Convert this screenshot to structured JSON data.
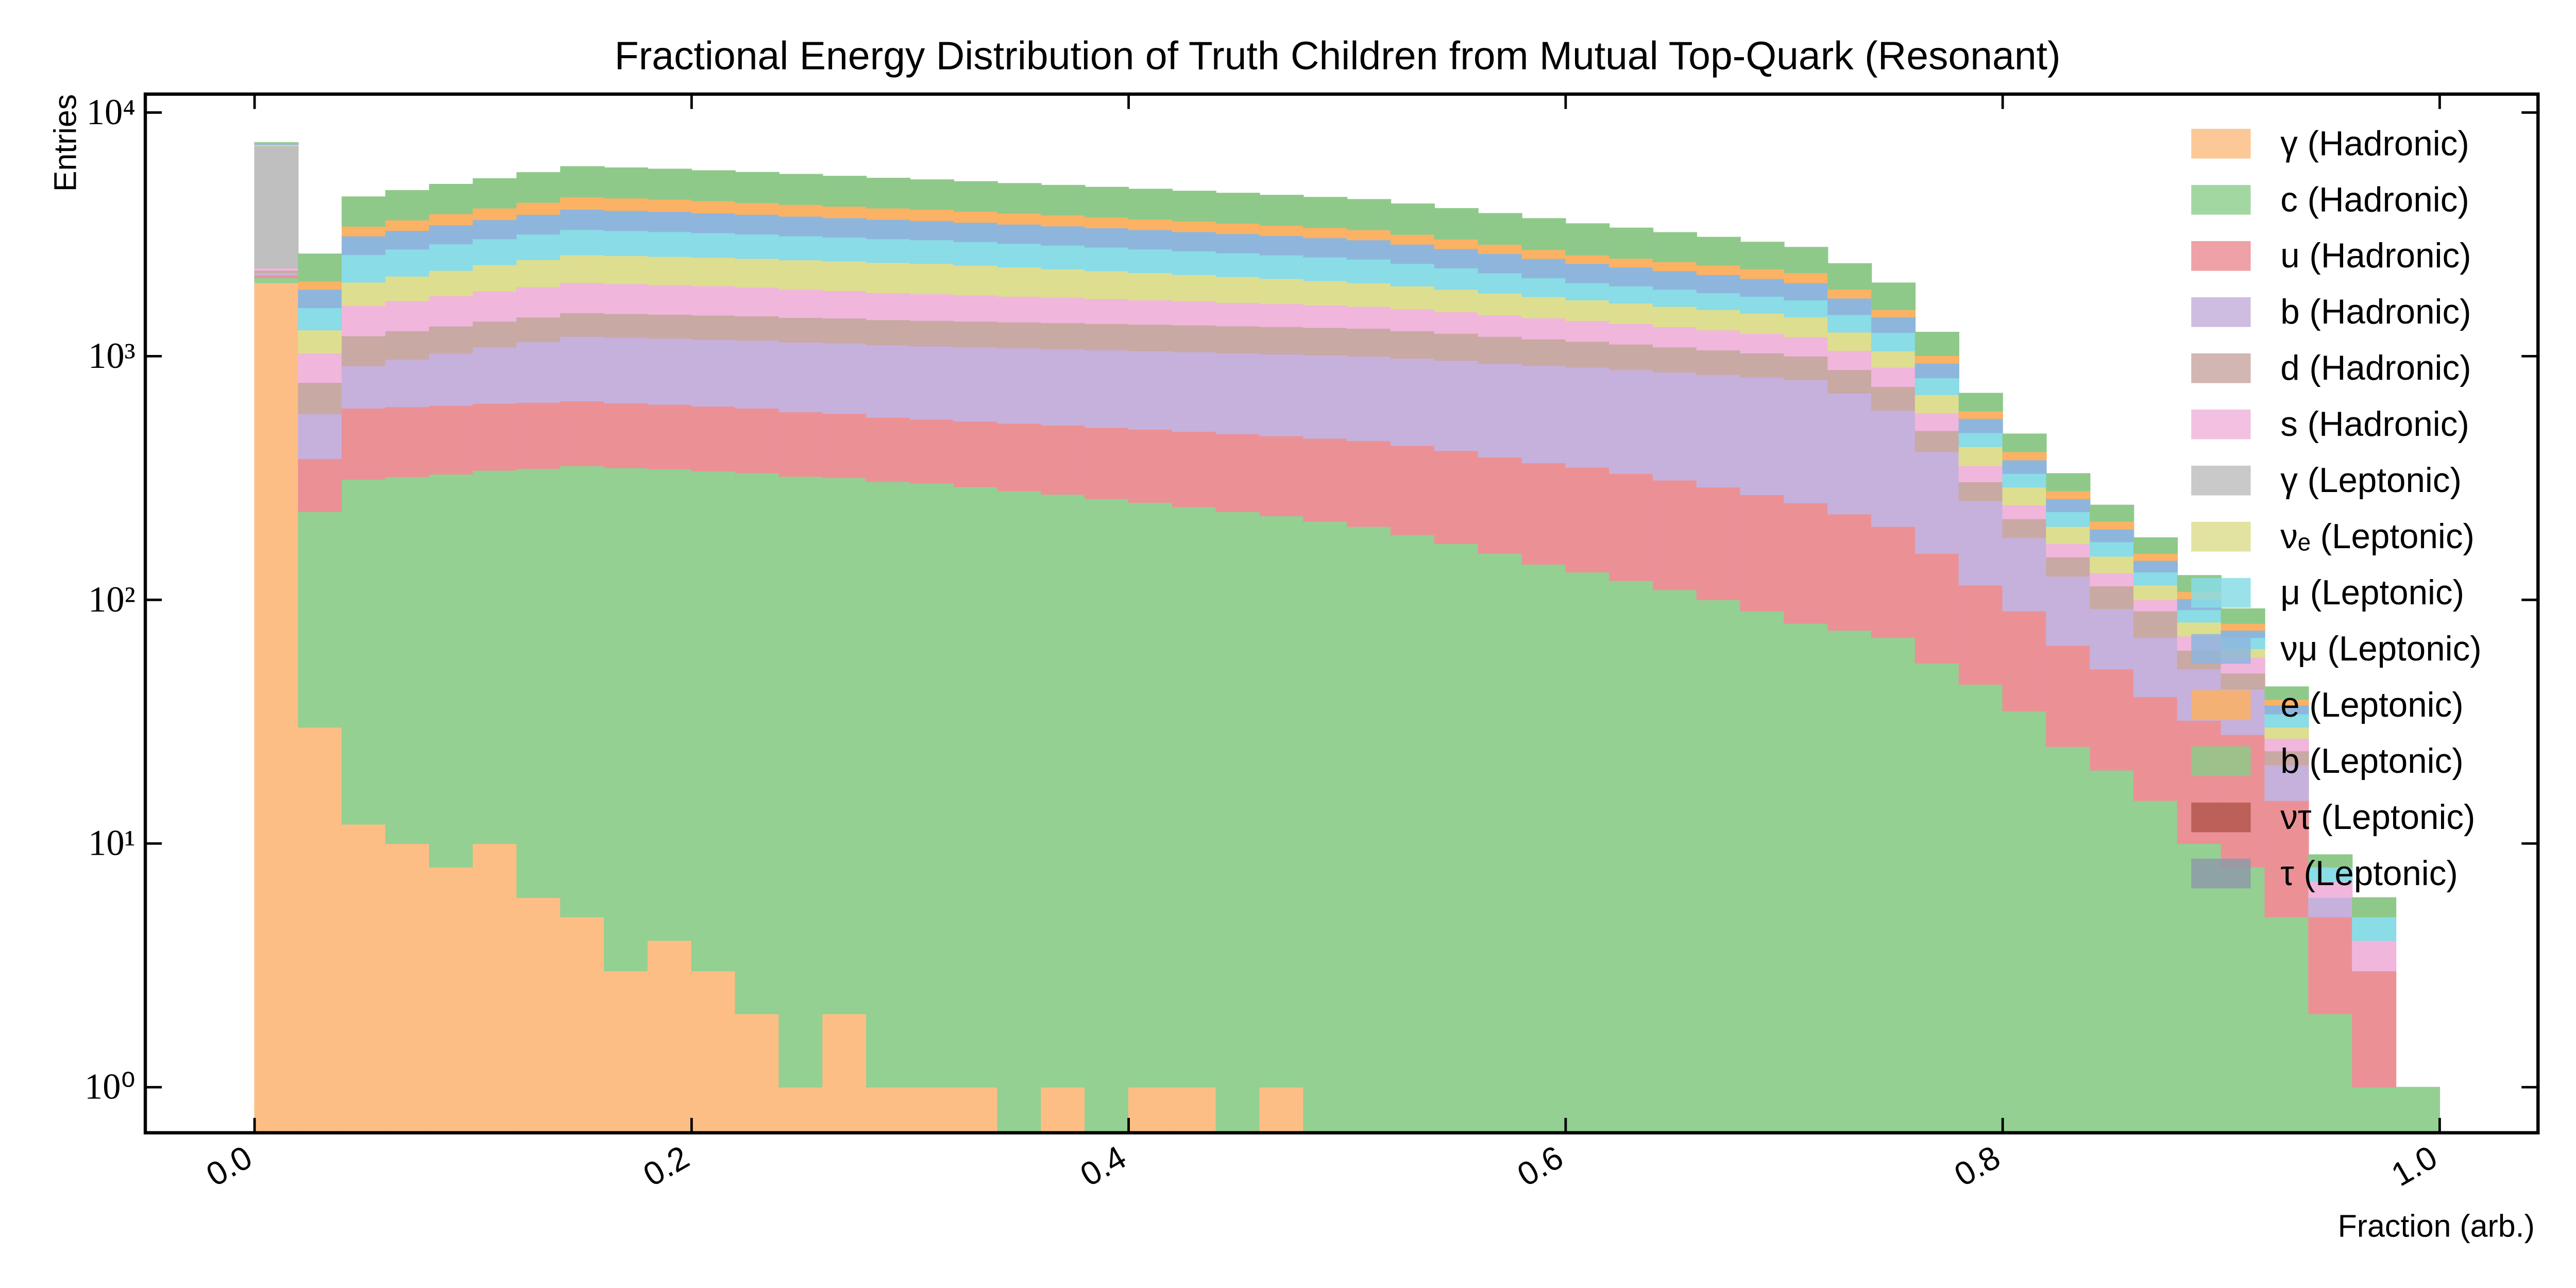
{
  "chart_data": {
    "type": "stacked_histogram",
    "title": "Fractional Energy Distribution of Truth Children from Mutual Top-Quark (Resonant)",
    "x_label": "Fraction (arb.)",
    "y_label": "Entries",
    "log_y": true,
    "grid": false,
    "legend": "upper right",
    "xlim": [
      -0.05,
      1.045
    ],
    "ylim": [
      0.65,
      11900
    ],
    "xticks": [
      {
        "value": 0,
        "label": "0.0"
      },
      0.2,
      0.4,
      0.6,
      0.8,
      {
        "value": 1,
        "label": "1.0"
      }
    ],
    "yticks": [
      {
        "value": 1,
        "label": "10⁰"
      },
      {
        "value": 10,
        "label": "10¹"
      },
      {
        "value": 100,
        "label": "10²"
      },
      {
        "value": 1000,
        "label": "10³"
      },
      {
        "value": 10000,
        "label": "10⁴"
      }
    ],
    "bins": [
      0,
      0.02,
      0.04,
      0.06,
      0.08,
      0.1,
      0.12,
      0.14,
      0.16,
      0.18,
      0.2,
      0.22,
      0.24,
      0.26,
      0.28,
      0.3,
      0.32,
      0.34,
      0.36,
      0.38,
      0.4,
      0.42,
      0.44,
      0.46,
      0.48,
      0.5,
      0.52,
      0.54,
      0.56,
      0.58,
      0.6,
      0.62,
      0.64,
      0.66,
      0.68,
      0.7,
      0.72,
      0.74,
      0.76,
      0.78,
      0.8,
      0.82,
      0.84,
      0.86,
      0.88,
      0.9,
      0.92,
      0.94,
      0.96,
      0.98,
      1
    ],
    "series": [
      {
        "name": "γ (Hadronic)",
        "color": "#fdbe85",
        "values": [
          2000,
          30,
          12,
          10,
          8,
          10,
          6,
          5,
          3,
          4,
          3,
          2,
          1,
          2,
          1,
          1,
          1,
          0,
          1,
          0,
          1,
          1,
          0,
          1,
          0,
          0,
          0,
          0,
          0,
          0,
          0,
          0,
          0,
          0,
          0,
          0,
          0,
          0,
          0,
          0,
          0,
          0,
          0,
          0,
          0,
          0,
          0,
          0,
          0,
          0
        ]
      },
      {
        "name": "c (Hadronic)",
        "color": "#93d092",
        "values": [
          100,
          200,
          300,
          310,
          320,
          330,
          340,
          350,
          345,
          340,
          335,
          330,
          320,
          315,
          305,
          300,
          290,
          280,
          270,
          260,
          250,
          240,
          230,
          220,
          210,
          200,
          185,
          170,
          155,
          140,
          130,
          120,
          110,
          100,
          90,
          80,
          75,
          70,
          55,
          45,
          35,
          25,
          20,
          15,
          10,
          8,
          5,
          2,
          1,
          1
        ]
      },
      {
        "name": "u (Hadronic)",
        "color": "#eb9196",
        "values": [
          50,
          150,
          300,
          300,
          300,
          300,
          300,
          300,
          295,
          290,
          285,
          280,
          270,
          265,
          255,
          250,
          250,
          250,
          250,
          250,
          250,
          250,
          250,
          250,
          250,
          250,
          245,
          240,
          230,
          225,
          220,
          210,
          200,
          190,
          180,
          170,
          150,
          130,
          100,
          70,
          55,
          40,
          32,
          25,
          22,
          20,
          10,
          3,
          2,
          0
        ]
      },
      {
        "name": "b (Hadronic)",
        "color": "#c6b1dc",
        "values": [
          50,
          200,
          300,
          350,
          400,
          450,
          500,
          550,
          550,
          550,
          550,
          550,
          550,
          550,
          550,
          550,
          550,
          550,
          550,
          550,
          550,
          550,
          550,
          550,
          550,
          550,
          550,
          550,
          550,
          550,
          550,
          550,
          550,
          550,
          550,
          550,
          480,
          400,
          250,
          140,
          90,
          60,
          40,
          30,
          20,
          15,
          6,
          1,
          0,
          0
        ]
      },
      {
        "name": "d (Hadronic)",
        "color": "#c9a9a3",
        "values": [
          50,
          200,
          300,
          300,
          300,
          300,
          300,
          300,
          300,
          300,
          300,
          300,
          300,
          300,
          300,
          300,
          300,
          300,
          300,
          300,
          300,
          300,
          300,
          300,
          300,
          300,
          290,
          280,
          270,
          260,
          250,
          240,
          230,
          220,
          210,
          200,
          175,
          150,
          90,
          50,
          35,
          25,
          22,
          20,
          10,
          7,
          3,
          0,
          0,
          0
        ]
      },
      {
        "name": "s (Hadronic)",
        "color": "#f0b6dc",
        "values": [
          50,
          250,
          400,
          420,
          440,
          460,
          480,
          500,
          490,
          480,
          470,
          455,
          440,
          425,
          410,
          400,
          390,
          380,
          370,
          360,
          350,
          340,
          330,
          320,
          310,
          300,
          290,
          280,
          270,
          260,
          250,
          240,
          230,
          220,
          210,
          200,
          175,
          150,
          90,
          50,
          30,
          20,
          15,
          10,
          9,
          8,
          3,
          1,
          1,
          0
        ]
      },
      {
        "name": "γ (Leptonic)",
        "color": "#bfbfbf",
        "values": [
          5000,
          0,
          0,
          0,
          0,
          0,
          0,
          0,
          0,
          0,
          0,
          0,
          0,
          0,
          0,
          0,
          0,
          0,
          0,
          0,
          0,
          0,
          0,
          0,
          0,
          0,
          0,
          0,
          0,
          0,
          0,
          0,
          0,
          0,
          0,
          0,
          0,
          0,
          0,
          0,
          0,
          0,
          0,
          0,
          0,
          0,
          0,
          0,
          0,
          0
        ]
      },
      {
        "name": "νₑ (Leptonic)",
        "color": "#dede90",
        "values": [
          50,
          250,
          400,
          440,
          480,
          520,
          560,
          600,
          600,
          600,
          600,
          600,
          600,
          600,
          600,
          600,
          580,
          560,
          540,
          520,
          500,
          480,
          460,
          440,
          420,
          400,
          380,
          360,
          340,
          320,
          300,
          290,
          280,
          270,
          260,
          250,
          200,
          150,
          110,
          70,
          45,
          30,
          22,
          15,
          10,
          5,
          3,
          0,
          0,
          0
        ]
      },
      {
        "name": "μ (Leptonic)",
        "color": "#8adce6",
        "values": [
          50,
          300,
          600,
          620,
          640,
          660,
          680,
          700,
          690,
          680,
          665,
          650,
          635,
          620,
          610,
          600,
          590,
          580,
          570,
          560,
          550,
          540,
          530,
          520,
          510,
          500,
          460,
          420,
          380,
          340,
          300,
          290,
          280,
          270,
          260,
          250,
          225,
          200,
          120,
          60,
          40,
          30,
          22,
          15,
          10,
          7,
          4,
          1,
          1,
          0
        ]
      },
      {
        "name": "νμ (Leptonic)",
        "color": "#8eb6dd",
        "values": [
          50,
          300,
          500,
          530,
          570,
          600,
          650,
          700,
          690,
          680,
          665,
          650,
          635,
          620,
          610,
          600,
          590,
          580,
          570,
          560,
          550,
          540,
          530,
          520,
          510,
          500,
          480,
          460,
          440,
          420,
          400,
          380,
          360,
          340,
          320,
          300,
          250,
          200,
          120,
          70,
          45,
          30,
          22,
          15,
          10,
          5,
          3,
          0,
          0,
          0
        ]
      },
      {
        "name": "e (Leptonic)",
        "color": "#fbb264",
        "values": [
          30,
          150,
          300,
          340,
          380,
          420,
          460,
          500,
          490,
          480,
          465,
          450,
          440,
          425,
          410,
          400,
          390,
          380,
          370,
          360,
          350,
          340,
          330,
          320,
          310,
          300,
          280,
          260,
          240,
          220,
          200,
          200,
          200,
          200,
          200,
          200,
          150,
          100,
          70,
          40,
          30,
          20,
          15,
          10,
          7,
          5,
          2,
          0,
          0,
          0
        ]
      },
      {
        "name": "b (Leptonic)",
        "color": "#8fc98a",
        "values": [
          50,
          600,
          1100,
          1170,
          1240,
          1310,
          1400,
          1500,
          1480,
          1460,
          1440,
          1420,
          1390,
          1360,
          1330,
          1300,
          1280,
          1260,
          1240,
          1220,
          1200,
          1180,
          1160,
          1140,
          1120,
          1100,
          1060,
          1020,
          980,
          940,
          900,
          840,
          780,
          720,
          660,
          600,
          520,
          450,
          250,
          110,
          75,
          50,
          35,
          25,
          18,
          12,
          5,
          1,
          1,
          0
        ]
      },
      {
        "name": "ντ (Leptonic)",
        "color": "#b5574f",
        "values": [
          0,
          0,
          0,
          0,
          0,
          0,
          0,
          0,
          0,
          0,
          0,
          0,
          0,
          0,
          0,
          0,
          0,
          0,
          0,
          0,
          0,
          0,
          0,
          0,
          0,
          0,
          0,
          0,
          0,
          0,
          0,
          0,
          0,
          0,
          0,
          0,
          0,
          0,
          0,
          0,
          0,
          0,
          0,
          0,
          0,
          0,
          0,
          0,
          0,
          0
        ]
      },
      {
        "name": "τ (Leptonic)",
        "color": "#8e9aa7",
        "values": [
          0,
          0,
          0,
          0,
          0,
          0,
          0,
          0,
          0,
          0,
          0,
          0,
          0,
          0,
          0,
          0,
          0,
          0,
          0,
          0,
          0,
          0,
          0,
          0,
          0,
          0,
          0,
          0,
          0,
          0,
          0,
          0,
          0,
          0,
          0,
          0,
          0,
          0,
          0,
          0,
          0,
          0,
          0,
          0,
          0,
          0,
          0,
          0,
          0,
          0
        ]
      }
    ]
  }
}
